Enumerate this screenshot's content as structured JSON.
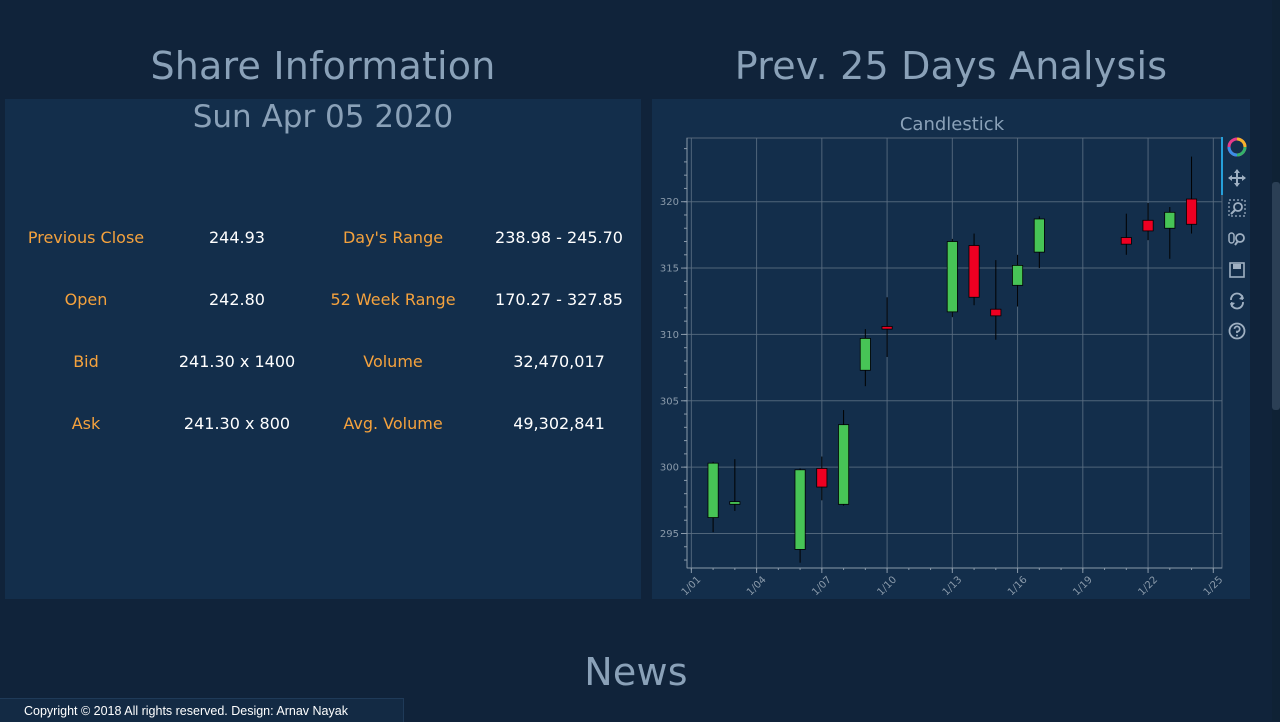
{
  "page": {
    "share_title": "Share Information",
    "analysis_title": "Prev. 25 Days Analysis",
    "news_title": "News",
    "footer": "Copyright © 2018 All rights reserved. Design: Arnav Nayak"
  },
  "share": {
    "date": "Sun Apr 05 2020",
    "rows": [
      {
        "label1": "Previous Close",
        "value1": "244.93",
        "label2": "Day's Range",
        "value2": "238.98 - 245.70"
      },
      {
        "label1": "Open",
        "value1": "242.80",
        "label2": "52 Week Range",
        "value2": "170.27 - 327.85"
      },
      {
        "label1": "Bid",
        "value1": "241.30 x 1400",
        "label2": "Volume",
        "value2": "32,470,017"
      },
      {
        "label1": "Ask",
        "value1": "241.30 x 800",
        "label2": "Avg. Volume",
        "value2": "49,302,841"
      }
    ]
  },
  "colors": {
    "background": "#10233a",
    "panel": "#132e4b",
    "label": "#f5a23d",
    "value": "#ffffff",
    "title": "#8aa1b8",
    "up": "#47c456",
    "down": "#ee0022"
  },
  "toolbar": [
    "bokeh-logo-icon",
    "pan-icon",
    "box-zoom-icon",
    "wheel-zoom-icon",
    "save-icon",
    "reset-icon",
    "help-icon"
  ],
  "chart_data": {
    "type": "candlestick",
    "title": "Candlestick",
    "xlabel": "",
    "ylabel": "",
    "grid": true,
    "x_ticks": [
      "1/01",
      "1/04",
      "1/07",
      "1/10",
      "1/13",
      "1/16",
      "1/19",
      "1/22",
      "1/25"
    ],
    "y_ticks": [
      295,
      300,
      305,
      310,
      315,
      320
    ],
    "xlim": [
      0.8,
      25.4
    ],
    "ylim": [
      292.4,
      324.8
    ],
    "candles": [
      {
        "day": 2,
        "open": 296.2,
        "close": 300.3,
        "high": 300.4,
        "low": 295.1
      },
      {
        "day": 3,
        "open": 297.2,
        "close": 297.4,
        "high": 300.6,
        "low": 296.7
      },
      {
        "day": 6,
        "open": 293.8,
        "close": 299.8,
        "high": 299.9,
        "low": 292.8
      },
      {
        "day": 7,
        "open": 299.9,
        "close": 298.5,
        "high": 300.8,
        "low": 297.5
      },
      {
        "day": 8,
        "open": 297.2,
        "close": 303.2,
        "high": 304.3,
        "low": 297.1
      },
      {
        "day": 9,
        "open": 307.3,
        "close": 309.7,
        "high": 310.4,
        "low": 306.1
      },
      {
        "day": 10,
        "open": 310.6,
        "close": 310.4,
        "high": 312.8,
        "low": 308.3
      },
      {
        "day": 13,
        "open": 311.7,
        "close": 317.0,
        "high": 317.2,
        "low": 311.3
      },
      {
        "day": 14,
        "open": 316.7,
        "close": 312.8,
        "high": 317.6,
        "low": 312.2
      },
      {
        "day": 15,
        "open": 311.9,
        "close": 311.4,
        "high": 315.6,
        "low": 309.6
      },
      {
        "day": 16,
        "open": 313.7,
        "close": 315.2,
        "high": 316.0,
        "low": 312.1
      },
      {
        "day": 17,
        "open": 316.2,
        "close": 318.7,
        "high": 318.9,
        "low": 315.0
      },
      {
        "day": 21,
        "open": 317.3,
        "close": 316.8,
        "high": 319.1,
        "low": 316.0
      },
      {
        "day": 22,
        "open": 318.6,
        "close": 317.8,
        "high": 319.9,
        "low": 317.1
      },
      {
        "day": 23,
        "open": 318.0,
        "close": 319.2,
        "high": 319.6,
        "low": 315.7
      },
      {
        "day": 24,
        "open": 320.2,
        "close": 318.3,
        "high": 323.4,
        "low": 317.6
      }
    ]
  }
}
